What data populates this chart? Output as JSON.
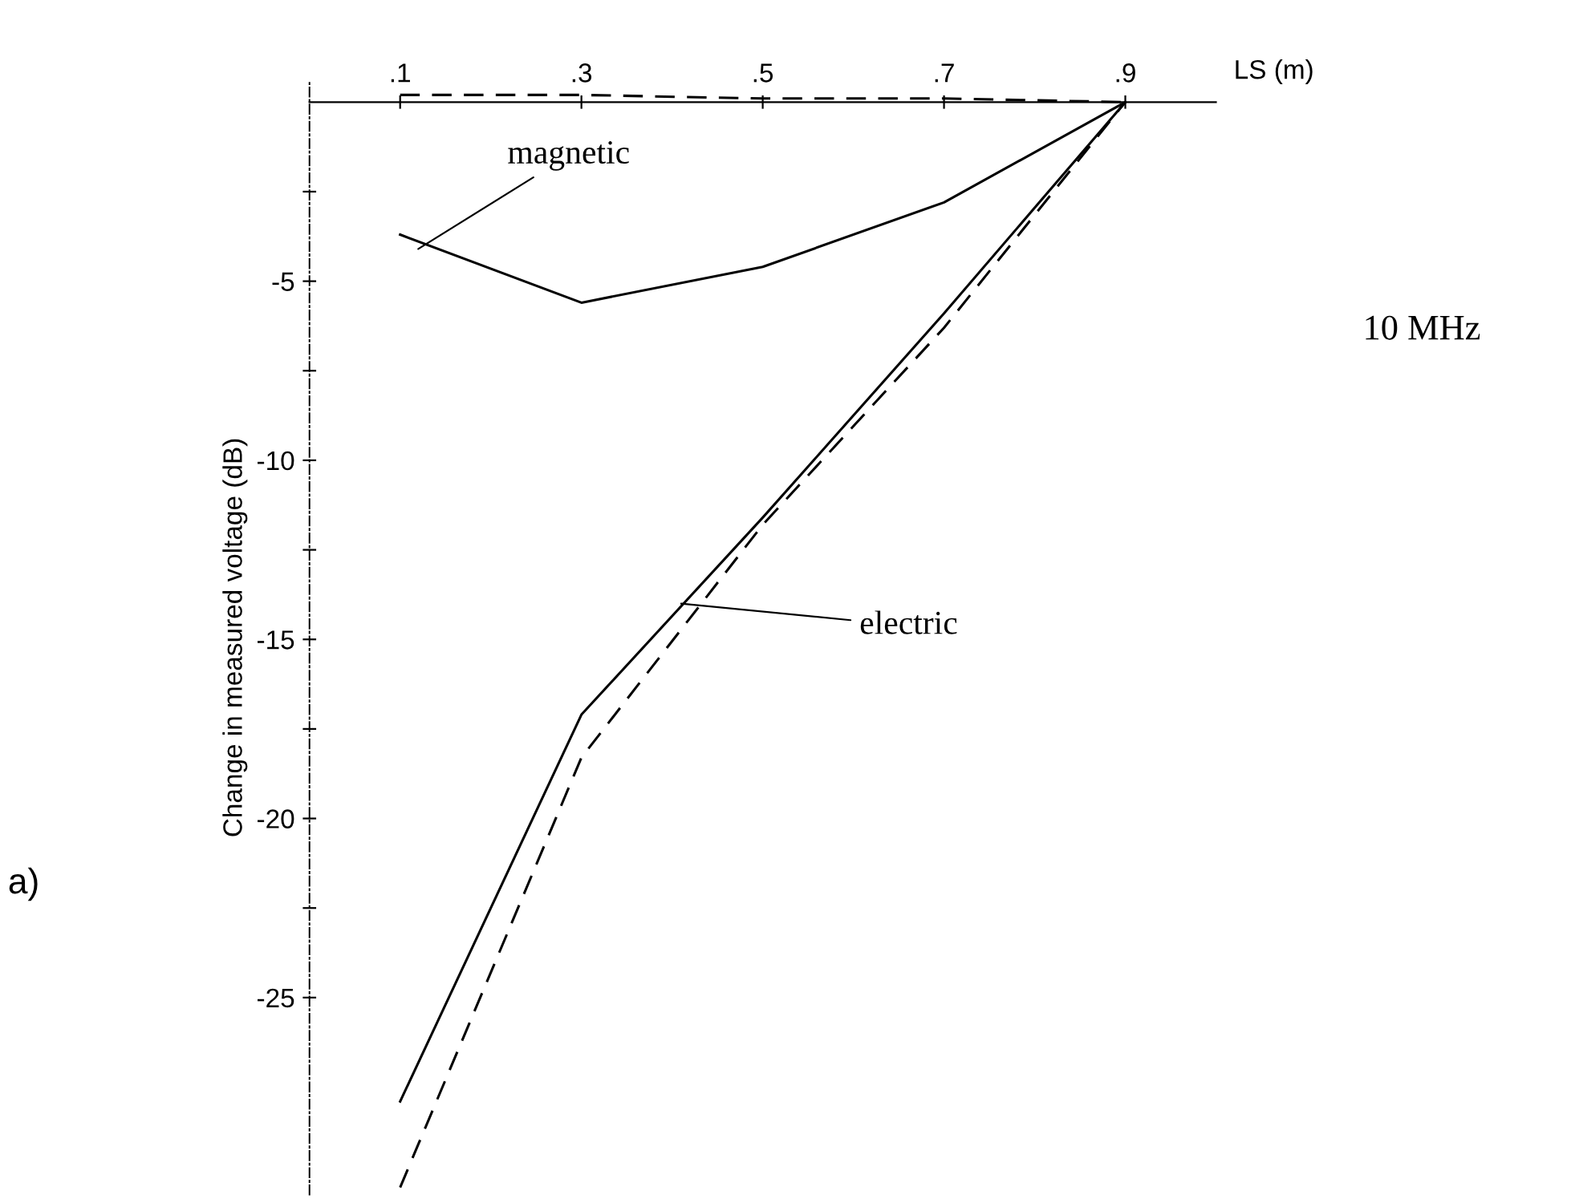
{
  "chart_data": {
    "type": "line",
    "xlabel": "LS (m)",
    "ylabel": "Change in measured voltage (dB)",
    "x": [
      0.1,
      0.3,
      0.5,
      0.7,
      0.9
    ],
    "series": [
      {
        "color": "#000000",
        "line_style": "solid",
        "values": [
          -3.7,
          -5.6,
          -4.6,
          -2.8,
          0
        ]
      },
      {
        "color": "#000000",
        "line_style": "dashed",
        "values": [
          0.2,
          0.2,
          0.1,
          0.1,
          0
        ]
      },
      {
        "color": "#000000",
        "line_style": "solid",
        "values": [
          -27.9,
          -17.1,
          -11.6,
          -5.9,
          0
        ]
      },
      {
        "color": "#000000",
        "line_style": "dashed",
        "values": [
          -30.3,
          -18.3,
          -11.8,
          -6.3,
          0
        ]
      }
    ],
    "xlim": [
      0,
      1.0
    ],
    "ylim": [
      -30.5,
      0.6
    ],
    "xticks": [
      {
        "value": 0.1,
        "label": ".1"
      },
      {
        "value": 0.3,
        "label": ".3"
      },
      {
        "value": 0.5,
        "label": ".5"
      },
      {
        "value": 0.7,
        "label": ".7"
      },
      {
        "value": 0.9,
        "label": ".9"
      }
    ],
    "yticks": [
      {
        "value": -2.5,
        "label": null
      },
      -5,
      {
        "value": -7.5,
        "label": null
      },
      -10,
      {
        "value": -12.5,
        "label": null
      },
      -15,
      {
        "value": -17.5,
        "label": null
      },
      -20,
      {
        "value": -22.5,
        "label": null
      },
      -25
    ],
    "annotations": [
      {
        "text": "magnetic",
        "x": 0.12,
        "y": -4.1
      },
      {
        "text": "electric",
        "x": 0.41,
        "y": -14.0
      },
      "10 MHz",
      "a)"
    ],
    "grid": false,
    "legend": false,
    "marker": "none"
  }
}
